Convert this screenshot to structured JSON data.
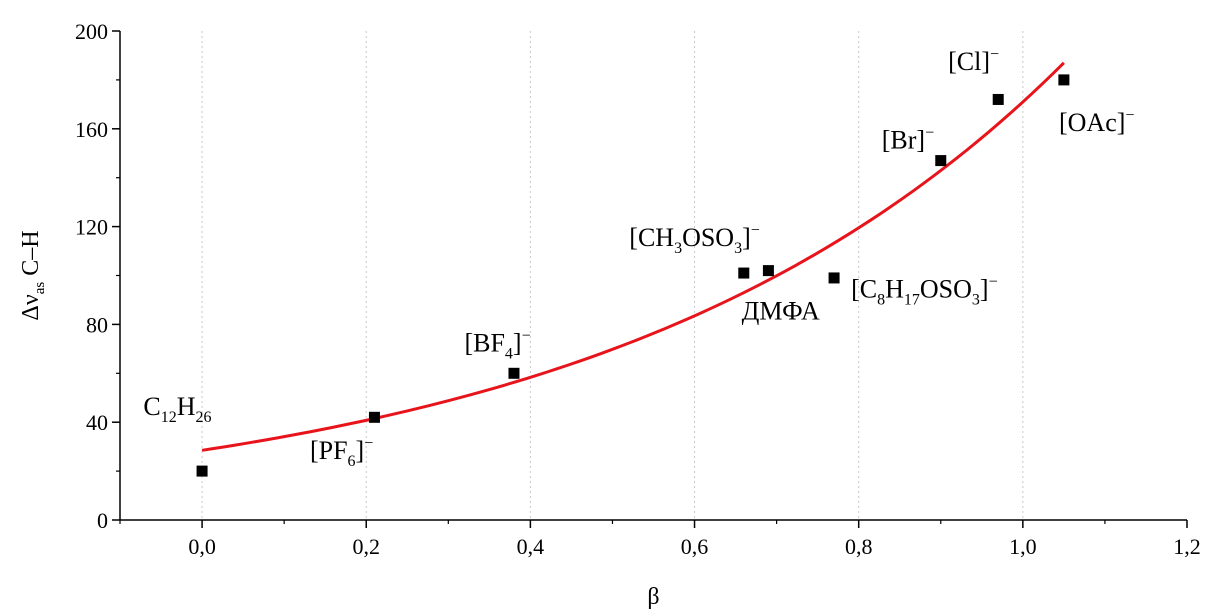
{
  "chart_data": {
    "type": "scatter",
    "xlabel": "β",
    "ylabel": {
      "main": "Δν",
      "sub": "as",
      "rest": " C–H"
    },
    "xlim": [
      -0.1,
      1.2
    ],
    "ylim": [
      0,
      200
    ],
    "x_ticks": [
      0.0,
      0.2,
      0.4,
      0.6,
      0.8,
      1.0,
      1.2
    ],
    "x_tick_labels": [
      "0,0",
      "0,2",
      "0,4",
      "0,6",
      "0,8",
      "1,0",
      "1,2"
    ],
    "y_ticks": [
      0,
      40,
      80,
      120,
      160,
      200
    ],
    "y_tick_labels": [
      "0",
      "40",
      "80",
      "120",
      "160",
      "200"
    ],
    "grid": "vertical dotted",
    "series": [
      {
        "marker": "square",
        "color": "#000000",
        "points": [
          {
            "x": 0.0,
            "y": 20
          },
          {
            "x": 0.21,
            "y": 42
          },
          {
            "x": 0.38,
            "y": 60
          },
          {
            "x": 0.66,
            "y": 101
          },
          {
            "x": 0.69,
            "y": 102
          },
          {
            "x": 0.77,
            "y": 99
          },
          {
            "x": 0.9,
            "y": 147
          },
          {
            "x": 0.97,
            "y": 172
          },
          {
            "x": 1.05,
            "y": 180
          }
        ]
      }
    ],
    "fit_curve": {
      "type": "exponential",
      "color": "#e8141c",
      "x_range": [
        0.0,
        1.05
      ],
      "y_start": 28.5,
      "y_end": 187
    },
    "annotations": [
      {
        "parts": [
          [
            "C",
            ""
          ],
          [
            "12",
            "sub"
          ],
          [
            "H",
            ""
          ],
          [
            "26",
            "sub"
          ]
        ],
        "x": -0.03,
        "y": 43
      },
      {
        "parts": [
          [
            "[PF",
            ""
          ],
          [
            "6",
            "sub"
          ],
          [
            "]",
            ""
          ],
          [
            "−",
            "sup"
          ]
        ],
        "x": 0.17,
        "y": 25
      },
      {
        "parts": [
          [
            "[BF",
            ""
          ],
          [
            "4",
            "sub"
          ],
          [
            "]",
            ""
          ],
          [
            "−",
            "sup"
          ]
        ],
        "x": 0.36,
        "y": 69
      },
      {
        "parts": [
          [
            "[CH",
            ""
          ],
          [
            "3",
            "sub"
          ],
          [
            "OSO",
            ""
          ],
          [
            "3",
            "sub"
          ],
          [
            "]",
            ""
          ],
          [
            "−",
            "sup"
          ]
        ],
        "x": 0.6,
        "y": 112
      },
      {
        "parts": [
          [
            "ДМФА",
            ""
          ]
        ],
        "x": 0.705,
        "y": 82
      },
      {
        "parts": [
          [
            "[C",
            ""
          ],
          [
            "8",
            "sub"
          ],
          [
            "H",
            ""
          ],
          [
            "17",
            "sub"
          ],
          [
            "OSO",
            ""
          ],
          [
            "3",
            "sub"
          ],
          [
            "]",
            ""
          ],
          [
            "−",
            "sup"
          ]
        ],
        "x": 0.88,
        "y": 91
      },
      {
        "parts": [
          [
            "[Br]",
            ""
          ],
          [
            "−",
            "sup"
          ]
        ],
        "x": 0.86,
        "y": 152
      },
      {
        "parts": [
          [
            "[Cl]",
            ""
          ],
          [
            "−",
            "sup"
          ]
        ],
        "x": 0.94,
        "y": 184
      },
      {
        "parts": [
          [
            "[OAc]",
            ""
          ],
          [
            "−",
            "sup"
          ]
        ],
        "x": 1.09,
        "y": 159
      }
    ]
  }
}
